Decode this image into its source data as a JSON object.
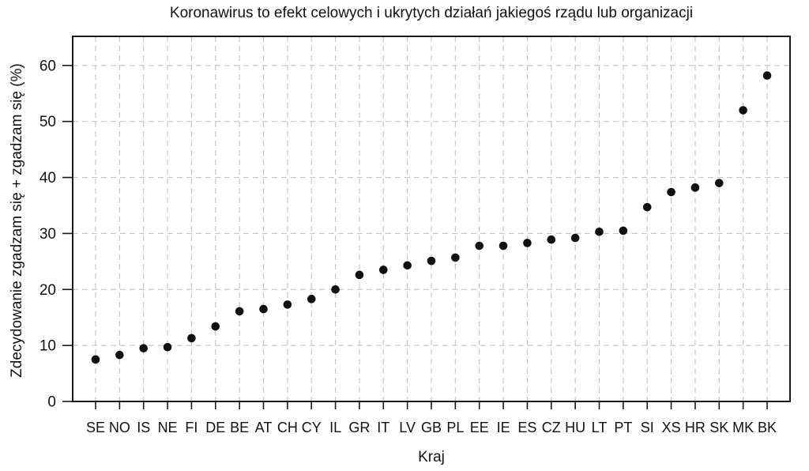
{
  "chart_data": {
    "type": "scatter",
    "title": "Koronawirus to efekt celowych i ukrytych działań jakiegoś rządu lub organizacji",
    "xlabel": "Kraj",
    "ylabel": "Zdecydowanie zgadzam się + zgadzam się (%)",
    "categories": [
      "SE",
      "NO",
      "IS",
      "NE",
      "FI",
      "DE",
      "BE",
      "AT",
      "CH",
      "CY",
      "IL",
      "GR",
      "IT",
      "LV",
      "GB",
      "PL",
      "EE",
      "IE",
      "ES",
      "CZ",
      "HU",
      "LT",
      "PT",
      "SI",
      "XS",
      "HR",
      "SK",
      "MK",
      "BK"
    ],
    "values": [
      7.5,
      8.3,
      9.5,
      9.7,
      11.3,
      13.4,
      16.1,
      16.5,
      17.3,
      18.3,
      20.0,
      22.6,
      23.5,
      24.3,
      25.1,
      25.7,
      27.8,
      27.8,
      28.3,
      28.9,
      29.2,
      30.3,
      30.5,
      34.7,
      37.4,
      38.2,
      39.0,
      52.0,
      58.2
    ],
    "ylim": [
      0,
      65.2
    ],
    "yticks": [
      0,
      10,
      20,
      30,
      40,
      50,
      60
    ],
    "grid": true,
    "legend": "none",
    "colors": {
      "point": "#111111",
      "grid": "#c7c7c7",
      "axis": "#1a1a1a",
      "text": "#111111",
      "background": "#ffffff"
    }
  }
}
